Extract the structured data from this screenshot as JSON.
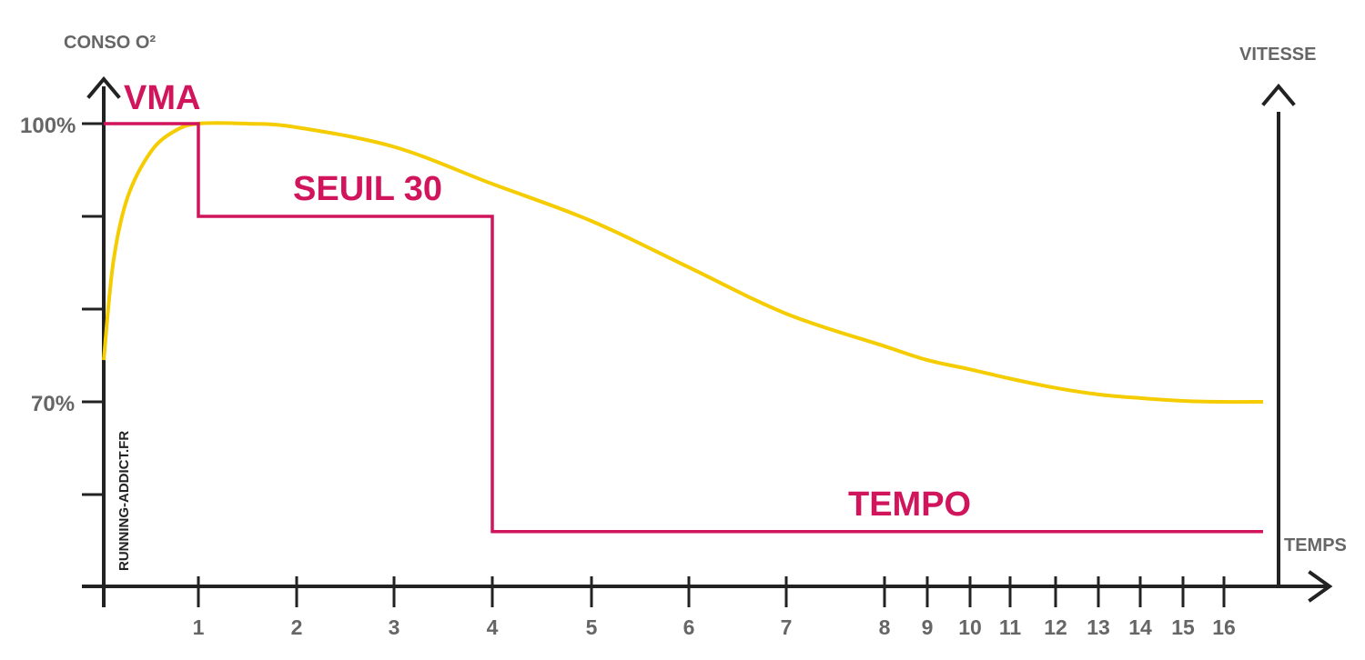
{
  "chart_data": {
    "type": "line",
    "ylabel": "CONSO O²",
    "y2label": "VITESSE",
    "xlabel": "TEMPS",
    "y_tick_labels": [
      {
        "value": 100,
        "label": "100%"
      },
      {
        "value": 70,
        "label": "70%"
      }
    ],
    "y_minor_ticks": [
      90,
      80,
      60
    ],
    "ylim": [
      50,
      100
    ],
    "x_ticks": [
      "1",
      "2",
      "3",
      "4",
      "5",
      "6",
      "7",
      "8",
      "9",
      "10",
      "11",
      "12",
      "13",
      "14",
      "15",
      "16"
    ],
    "grid": false,
    "series": [
      {
        "name": "",
        "color": "#F5CC00",
        "x": [
          0,
          0.1,
          0.25,
          0.5,
          0.75,
          1,
          1.5,
          2,
          3,
          4,
          5,
          6,
          7,
          8,
          9,
          10,
          11,
          12,
          13,
          14,
          15,
          16,
          16.7
        ],
        "values": [
          74.5,
          85,
          92,
          97,
          99.2,
          100,
          100,
          99.6,
          97.5,
          93.5,
          89.5,
          84.5,
          79.5,
          76,
          74.5,
          73.5,
          72.5,
          71.5,
          70.8,
          70.4,
          70.1,
          70,
          70
        ]
      },
      {
        "name": "",
        "color": "#D1155C",
        "x": [
          0,
          1,
          1,
          4,
          4,
          16.7
        ],
        "values": [
          100,
          100,
          90,
          90,
          56,
          56
        ]
      }
    ],
    "annotations": [
      {
        "text": "VMA",
        "color": "#D1155C"
      },
      {
        "text": "SEUIL 30",
        "color": "#D1155C"
      },
      {
        "text": "TEMPO",
        "color": "#D1155C"
      }
    ]
  },
  "watermark": "RUNNING-ADDICT.FR"
}
